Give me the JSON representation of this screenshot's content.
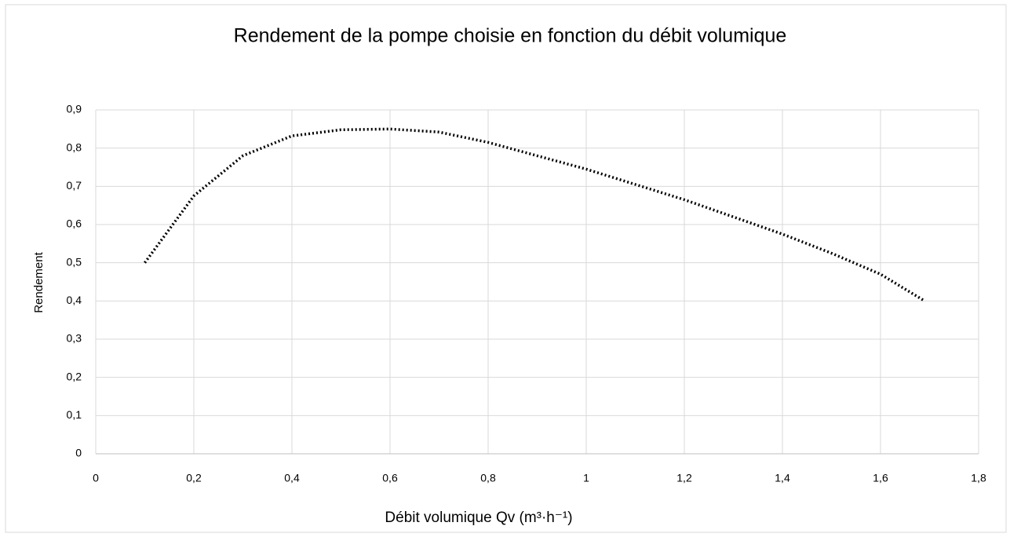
{
  "chart_data": {
    "type": "line",
    "title": "Rendement de la pompe choisie en fonction du débit volumique",
    "xlabel": "Débit volumique Qv (m³·h⁻¹)",
    "ylabel": "Rendement",
    "series": [
      {
        "color": "#000000",
        "x": [
          0.1,
          0.2,
          0.3,
          0.4,
          0.5,
          0.6,
          0.7,
          0.8,
          0.9,
          1,
          1.1,
          1.2,
          1.3,
          1.4,
          1.5,
          1.6,
          1.69
        ],
        "values": [
          0.5,
          0.675,
          0.78,
          0.832,
          0.848,
          0.85,
          0.842,
          0.815,
          0.78,
          0.745,
          0.705,
          0.665,
          0.62,
          0.575,
          0.525,
          0.47,
          0.4
        ]
      }
    ],
    "xlim": [
      0,
      1.8
    ],
    "xticks": [
      0,
      {
        "value": 0.2,
        "label": "0,2"
      },
      {
        "value": 0.4,
        "label": "0,4"
      },
      {
        "value": 0.6,
        "label": "0,6"
      },
      {
        "value": 0.8,
        "label": "0,8"
      },
      1,
      {
        "value": 1.2,
        "label": "1,2"
      },
      {
        "value": 1.4,
        "label": "1,4"
      },
      {
        "value": 1.6,
        "label": "1,6"
      },
      {
        "value": 1.8,
        "label": "1,8"
      }
    ],
    "ylim": [
      0,
      0.9
    ],
    "yticks": [
      0,
      {
        "value": 0.1,
        "label": "0,1"
      },
      {
        "value": 0.2,
        "label": "0,2"
      },
      {
        "value": 0.3,
        "label": "0,3"
      },
      {
        "value": 0.4,
        "label": "0,4"
      },
      {
        "value": 0.5,
        "label": "0,5"
      },
      {
        "value": 0.6,
        "label": "0,6"
      },
      {
        "value": 0.7,
        "label": "0,7"
      },
      {
        "value": 0.8,
        "label": "0,8"
      },
      {
        "value": 0.9,
        "label": "0,9"
      }
    ],
    "grid": true
  }
}
